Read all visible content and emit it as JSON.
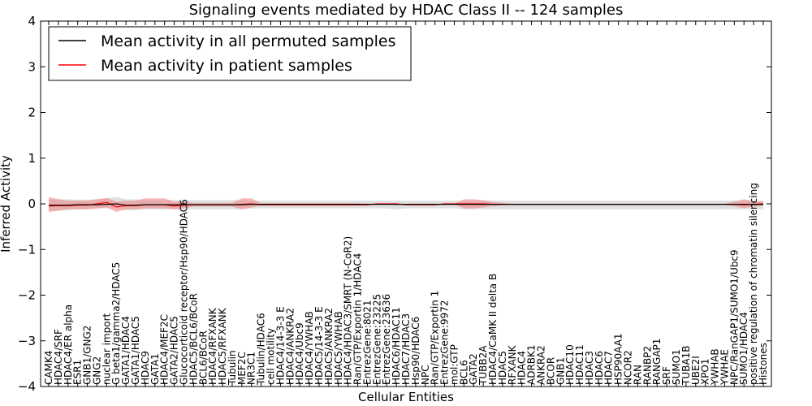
{
  "chart_data": {
    "type": "line",
    "title": "Signaling events mediated by HDAC Class II -- 124 samples",
    "xlabel": "Cellular Entities",
    "ylabel": "Inferred Activity",
    "ylim": [
      -4,
      4
    ],
    "yticks": [
      "4",
      "3",
      "2",
      "1",
      "0",
      "−1",
      "−2",
      "−3",
      "−4"
    ],
    "ytick_values": [
      4,
      3,
      2,
      1,
      0,
      -1,
      -2,
      -3,
      -4
    ],
    "grid": false,
    "legend_position": "top-left",
    "categories": [
      "CAMK4",
      "HDAC4/SRF",
      "HDAC4/ER alpha",
      "ESR1",
      "GNB1/GNG2",
      "GNG2",
      "nuclear import",
      "G beta1/gamma2/HDAC5",
      "GATA1/HDAC4",
      "GATA1/HDAC5",
      "HDAC9",
      "GATA1",
      "HDAC4/MEF2C",
      "GATA2/HDAC5",
      "Glucocorticoid receptor/Hsp90/HDAC6",
      "HDAC5/BCL6/BCoR",
      "BCL6/BCoR",
      "HDAC4/RFXANK",
      "HDAC5/RFXANK",
      "Tubulin",
      "MEF2C",
      "NR3C1",
      "Tubulin/HDAC6",
      "cell motility",
      "HDAC4/14-3-3 E",
      "HDAC4/ANKRA2",
      "HDAC4/Ubc9",
      "HDAC4/YWHAB",
      "HDAC5/14-3-3 E",
      "HDAC5/ANKRA2",
      "HDAC5/YWHAB",
      "HDAC4/HDAC3/SMRT (N-CoR2)",
      "Ran/GTP/Exportin 1/HDAC4",
      "EntrezGene:8021",
      "EntrezGene:23225",
      "EntrezGene:23636",
      "HDAC6/HDAC11",
      "HDAC7/HDAC3",
      "Hsp90/HDAC6",
      "NPC",
      "Ran/GTP/Exportin 1",
      "EntrezGene:9972",
      "mol:GTP",
      "BCL6",
      "GATA2",
      "TUBB2A",
      "HDAC4/CaMK II delta B",
      "HDAC5",
      "RFXANK",
      "HDAC4",
      "ADRBK1",
      "ANKRA2",
      "BCOR",
      "GNB1",
      "HDAC10",
      "HDAC11",
      "HDAC3",
      "HDAC6",
      "HDAC7",
      "HSP90AA1",
      "NCOR2",
      "RAN",
      "RANBP2",
      "RANGAP1",
      "SRF",
      "SUMO1",
      "TUBA1B",
      "UBE2I",
      "XPO1",
      "YWHAB",
      "YWHAE",
      "NPC/RanGAP1/SUMO1/Ubc9",
      "SUMO1/HDAC4",
      "positive regulation of chromatin silencing",
      "Histones"
    ],
    "series": [
      {
        "name": "Mean activity in all permuted samples",
        "color": "#000000",
        "values": [
          -0.03,
          -0.03,
          -0.03,
          -0.02,
          -0.02,
          -0.02,
          -0.01,
          0.0,
          -0.03,
          -0.03,
          -0.02,
          -0.02,
          -0.02,
          -0.02,
          -0.02,
          -0.02,
          -0.02,
          -0.02,
          -0.02,
          -0.02,
          -0.02,
          -0.01,
          -0.01,
          -0.01,
          -0.01,
          -0.01,
          -0.01,
          -0.01,
          -0.01,
          -0.01,
          -0.01,
          -0.01,
          -0.01,
          -0.01,
          -0.01,
          -0.01,
          -0.01,
          -0.01,
          -0.01,
          -0.01,
          -0.01,
          -0.01,
          -0.01,
          -0.01,
          -0.01,
          -0.01,
          -0.01,
          -0.01,
          -0.01,
          -0.01,
          -0.01,
          -0.01,
          -0.01,
          -0.01,
          -0.01,
          -0.01,
          -0.01,
          -0.01,
          -0.01,
          -0.01,
          -0.01,
          -0.01,
          -0.01,
          -0.01,
          -0.01,
          -0.01,
          -0.01,
          -0.01,
          -0.01,
          -0.01,
          -0.01,
          -0.01,
          -0.01,
          -0.01,
          -0.01
        ],
        "band_lower": [
          -0.15,
          -0.15,
          -0.14,
          -0.12,
          -0.12,
          -0.1,
          -0.1,
          -0.1,
          -0.14,
          -0.14,
          -0.12,
          -0.12,
          -0.12,
          -0.12,
          -0.12,
          -0.12,
          -0.12,
          -0.12,
          -0.12,
          -0.12,
          -0.12,
          -0.1,
          -0.1,
          -0.1,
          -0.1,
          -0.1,
          -0.1,
          -0.1,
          -0.1,
          -0.1,
          -0.1,
          -0.1,
          -0.1,
          -0.1,
          -0.1,
          -0.1,
          -0.12,
          -0.1,
          -0.1,
          -0.1,
          -0.1,
          -0.1,
          -0.1,
          -0.12,
          -0.12,
          -0.12,
          -0.12,
          -0.12,
          -0.12,
          -0.12,
          -0.12,
          -0.12,
          -0.12,
          -0.12,
          -0.12,
          -0.12,
          -0.12,
          -0.12,
          -0.12,
          -0.12,
          -0.12,
          -0.12,
          -0.12,
          -0.12,
          -0.12,
          -0.12,
          -0.12,
          -0.12,
          -0.12,
          -0.12,
          -0.12,
          -0.12,
          -0.12,
          -0.12,
          -0.12
        ],
        "band_upper": [
          0.1,
          0.1,
          0.1,
          0.09,
          0.09,
          0.1,
          0.12,
          0.15,
          0.1,
          0.1,
          0.09,
          0.08,
          0.08,
          0.08,
          0.08,
          0.08,
          0.08,
          0.08,
          0.08,
          0.08,
          0.08,
          0.07,
          0.07,
          0.07,
          0.07,
          0.07,
          0.07,
          0.07,
          0.07,
          0.07,
          0.07,
          0.07,
          0.07,
          0.07,
          0.07,
          0.07,
          0.07,
          0.07,
          0.07,
          0.07,
          0.07,
          0.07,
          0.07,
          0.07,
          0.07,
          0.07,
          0.07,
          0.07,
          0.07,
          0.07,
          0.07,
          0.07,
          0.07,
          0.07,
          0.07,
          0.07,
          0.07,
          0.07,
          0.07,
          0.07,
          0.07,
          0.07,
          0.07,
          0.07,
          0.07,
          0.07,
          0.07,
          0.07,
          0.07,
          0.07,
          0.07,
          0.07,
          0.07,
          0.07,
          0.07
        ]
      },
      {
        "name": "Mean activity in patient samples",
        "color": "#ff0000",
        "values": [
          -0.05,
          -0.04,
          -0.04,
          -0.03,
          -0.03,
          0.0,
          0.03,
          -0.07,
          -0.04,
          -0.04,
          -0.02,
          -0.02,
          -0.02,
          -0.05,
          -0.03,
          -0.02,
          -0.02,
          -0.02,
          -0.02,
          -0.02,
          -0.01,
          0.0,
          -0.02,
          -0.02,
          -0.02,
          -0.02,
          -0.02,
          -0.02,
          -0.02,
          -0.02,
          -0.02,
          -0.02,
          -0.02,
          -0.02,
          0.0,
          0.0,
          0.0,
          -0.02,
          -0.02,
          -0.02,
          -0.02,
          0.0,
          0.0,
          0.0,
          0.0,
          0.0,
          -0.01,
          -0.01,
          -0.01,
          -0.01,
          -0.01,
          -0.01,
          -0.01,
          -0.01,
          -0.01,
          -0.01,
          -0.01,
          -0.01,
          -0.01,
          -0.01,
          -0.01,
          -0.01,
          -0.01,
          -0.01,
          -0.01,
          -0.01,
          -0.01,
          -0.01,
          -0.01,
          -0.01,
          -0.01,
          -0.01,
          -0.02,
          -0.01,
          0.0
        ],
        "band_lower": [
          -0.18,
          -0.15,
          -0.12,
          -0.12,
          -0.12,
          -0.1,
          -0.08,
          -0.18,
          -0.12,
          -0.12,
          -0.1,
          -0.1,
          -0.1,
          -0.12,
          -0.1,
          -0.06,
          -0.06,
          -0.06,
          -0.06,
          -0.06,
          -0.12,
          -0.08,
          -0.04,
          -0.04,
          -0.04,
          -0.04,
          -0.04,
          -0.04,
          -0.04,
          -0.04,
          -0.04,
          -0.04,
          -0.04,
          -0.04,
          0.0,
          0.0,
          0.0,
          -0.03,
          -0.03,
          -0.03,
          -0.03,
          0.0,
          0.0,
          -0.1,
          -0.1,
          -0.08,
          -0.05,
          -0.03,
          -0.02,
          -0.02,
          -0.02,
          -0.02,
          -0.02,
          -0.02,
          -0.02,
          -0.02,
          -0.02,
          -0.02,
          -0.02,
          -0.02,
          -0.02,
          -0.02,
          -0.02,
          -0.02,
          -0.02,
          -0.02,
          -0.02,
          -0.02,
          -0.02,
          -0.02,
          -0.02,
          -0.05,
          -0.1,
          -0.06,
          -0.05
        ],
        "band_upper": [
          0.15,
          0.1,
          0.07,
          0.07,
          0.07,
          0.1,
          0.13,
          0.05,
          0.07,
          0.07,
          0.12,
          0.12,
          0.12,
          0.05,
          0.05,
          0.02,
          0.02,
          0.02,
          0.02,
          0.02,
          0.12,
          0.12,
          0.01,
          0.01,
          0.01,
          0.01,
          0.01,
          0.01,
          0.01,
          0.01,
          0.01,
          0.01,
          0.01,
          0.0,
          0.0,
          0.0,
          0.0,
          0.0,
          0.0,
          0.0,
          0.0,
          0.0,
          0.0,
          0.1,
          0.1,
          0.08,
          0.04,
          0.02,
          0.0,
          0.0,
          0.0,
          0.0,
          0.0,
          0.0,
          0.0,
          0.0,
          0.0,
          0.0,
          0.0,
          0.0,
          0.0,
          0.0,
          0.0,
          0.0,
          0.0,
          0.0,
          0.0,
          0.0,
          0.0,
          0.0,
          0.0,
          0.05,
          0.1,
          0.06,
          0.05
        ]
      }
    ],
    "band_colors": {
      "permuted": "#cccccc",
      "patient": "#f08080"
    }
  }
}
